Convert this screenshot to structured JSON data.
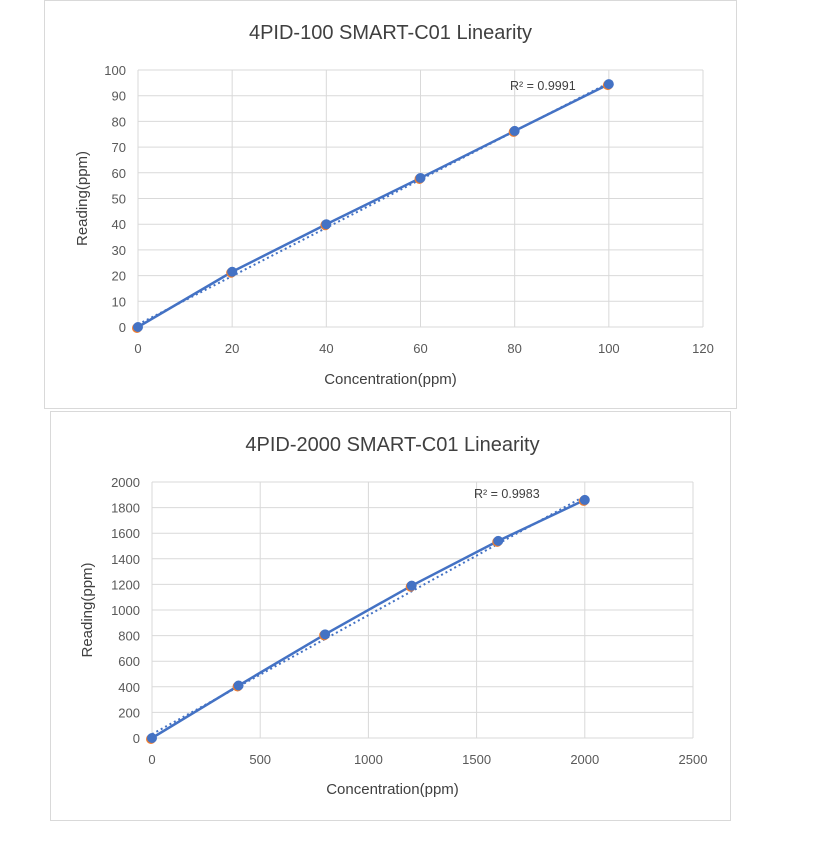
{
  "chart_data": [
    {
      "type": "scatter",
      "title": "4PID-100 SMART-C01 Linearity",
      "xlabel": "Concentration(ppm)",
      "ylabel": "Reading(ppm)",
      "xlim": [
        0,
        120
      ],
      "ylim": [
        0,
        100
      ],
      "x_ticks": [
        "0",
        "20",
        "40",
        "60",
        "80",
        "100",
        "120"
      ],
      "y_ticks": [
        "0",
        "10",
        "20",
        "30",
        "40",
        "50",
        "60",
        "70",
        "80",
        "90",
        "100"
      ],
      "series": [
        {
          "x": [
            0,
            20,
            40,
            60,
            80,
            100
          ],
          "y": [
            0,
            21.5,
            40,
            58,
            76.3,
            94.5
          ],
          "color": "#4472c4",
          "marker_accent": "#ed7d31"
        }
      ],
      "trendline": {
        "style": "dotted",
        "x": [
          0,
          100
        ],
        "y": [
          1,
          95
        ],
        "r2_label": "R² = 0.9991"
      },
      "grid": true
    },
    {
      "type": "scatter",
      "title": "4PID-2000 SMART-C01 Linearity",
      "xlabel": "Concentration(ppm)",
      "ylabel": "Reading(ppm)",
      "xlim": [
        0,
        2500
      ],
      "ylim": [
        0,
        2000
      ],
      "x_ticks": [
        "0",
        "500",
        "1000",
        "1500",
        "2000",
        "2500"
      ],
      "y_ticks": [
        "0",
        "200",
        "400",
        "600",
        "800",
        "1000",
        "1200",
        "1400",
        "1600",
        "1800",
        "2000"
      ],
      "series": [
        {
          "x": [
            0,
            400,
            800,
            1200,
            1600,
            2000
          ],
          "y": [
            0,
            410,
            810,
            1190,
            1540,
            1860
          ],
          "color": "#4472c4",
          "marker_accent": "#ed7d31"
        }
      ],
      "trendline": {
        "style": "dotted",
        "x": [
          0,
          2000
        ],
        "y": [
          30,
          1890
        ],
        "r2_label": "R² = 0.9983"
      },
      "grid": true
    }
  ]
}
